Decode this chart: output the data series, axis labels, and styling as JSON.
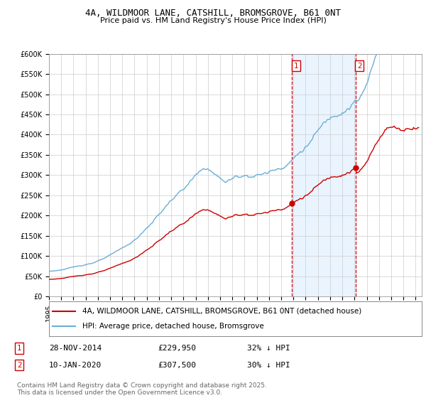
{
  "title": "4A, WILDMOOR LANE, CATSHILL, BROMSGROVE, B61 0NT",
  "subtitle": "Price paid vs. HM Land Registry's House Price Index (HPI)",
  "ylim": [
    0,
    600000
  ],
  "yticks": [
    0,
    50000,
    100000,
    150000,
    200000,
    250000,
    300000,
    350000,
    400000,
    450000,
    500000,
    550000,
    600000
  ],
  "ytick_labels": [
    "£0",
    "£50K",
    "£100K",
    "£150K",
    "£200K",
    "£250K",
    "£300K",
    "£350K",
    "£400K",
    "£450K",
    "£500K",
    "£550K",
    "£600K"
  ],
  "sale1_date": "28-NOV-2014",
  "sale1_price": 229950,
  "sale1_label": "£229,950",
  "sale1_hpi_pct": "32% ↓ HPI",
  "sale1_x": 2014.9,
  "sale2_date": "10-JAN-2020",
  "sale2_price": 307500,
  "sale2_label": "£307,500",
  "sale2_hpi_pct": "30% ↓ HPI",
  "sale2_x": 2020.03,
  "legend_label1": "4A, WILDMOOR LANE, CATSHILL, BROMSGROVE, B61 0NT (detached house)",
  "legend_label2": "HPI: Average price, detached house, Bromsgrove",
  "footer": "Contains HM Land Registry data © Crown copyright and database right 2025.\nThis data is licensed under the Open Government Licence v3.0.",
  "hpi_color": "#6baed6",
  "price_color": "#cc0000",
  "vline_color": "#cc0000",
  "bg_highlight_color": "#ddeeff",
  "grid_color": "#cccccc",
  "title_fontsize": 9,
  "subtitle_fontsize": 8,
  "axis_fontsize": 7,
  "legend_fontsize": 7.5,
  "footer_fontsize": 6.5
}
